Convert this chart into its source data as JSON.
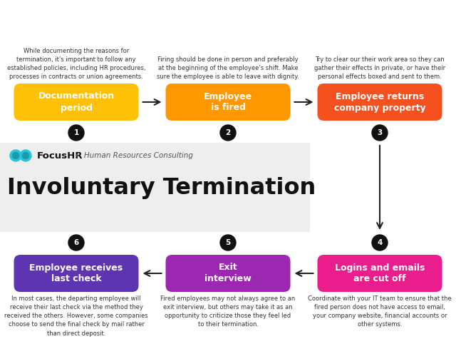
{
  "title": "Involuntary Termination",
  "brand": "FocusHR",
  "subtitle": " •  Human Resources Consulting",
  "bg_color": "#ffffff",
  "gray_panel_color": "#eeeeee",
  "brand_color": "#26c6da",
  "steps": [
    {
      "num": 1,
      "label": "Documentation\nperiod",
      "color": "#FFC107",
      "text": "While documenting the reasons for\ntermination, it’s important to follow any\nestablished policies, including HR procedures,\nprocesses in contracts or union agreements.",
      "row": 0,
      "col": 0
    },
    {
      "num": 2,
      "label": "Employee\nis fired",
      "color": "#FF9800",
      "text": "Firing should be done in person and preferably\nat the beginning of the employee’s shift. Make\nsure the employee is able to leave with dignity.",
      "row": 0,
      "col": 1
    },
    {
      "num": 3,
      "label": "Employee returns\ncompany property",
      "color": "#F4511E",
      "text": "Try to clear our their work area so they can\ngather their effects in private, or have their\npersonal effects boxed and sent to them.",
      "row": 0,
      "col": 2
    },
    {
      "num": 4,
      "label": "Logins and emails\nare cut off",
      "color": "#E91E8C",
      "text": "Coordinate with your IT team to ensure that the\nfired person does not have access to email,\nyour company website, financial accounts or\nother systems.",
      "row": 1,
      "col": 2
    },
    {
      "num": 5,
      "label": "Exit\ninterview",
      "color": "#9C27B0",
      "text": "Fired employees may not always agree to an\nexit interview, but others may take it as an\nopportunity to criticize those they feel led\nto their termination.",
      "row": 1,
      "col": 1
    },
    {
      "num": 6,
      "label": "Employee receives\nlast check",
      "color": "#5E35B1",
      "text": "In most cases, the departing employee will\nreceive their last check via the method they\nreceived the others. However, some companies\nchoose to send the final check by mail rather\nthan direct deposit.",
      "row": 1,
      "col": 0
    }
  ]
}
